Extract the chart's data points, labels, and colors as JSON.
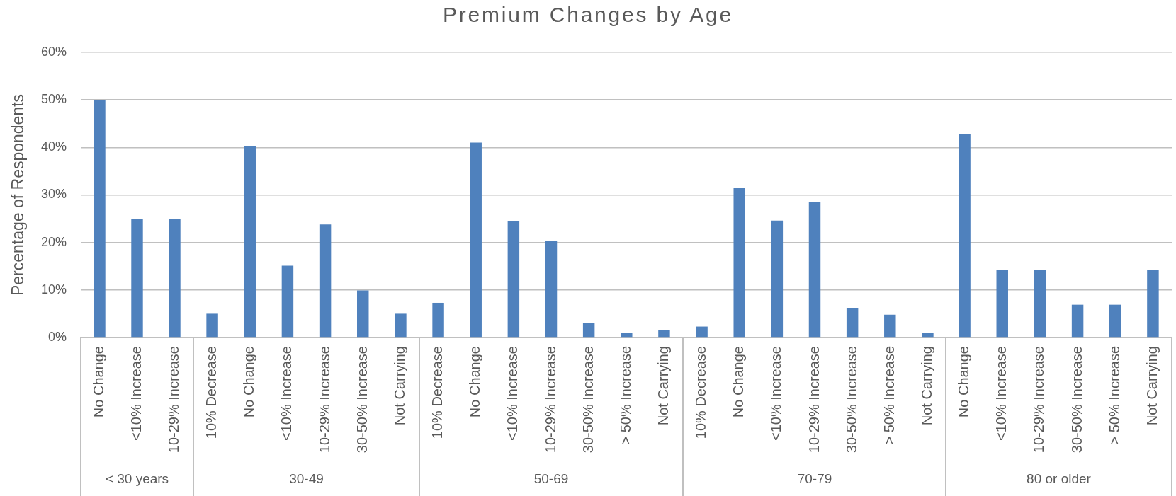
{
  "chart_data": [
    {
      "type": "bar",
      "ylabel": "Percentage of Respondents",
      "xlabel": "< 30 years",
      "categories": [
        "No Change",
        "<10% Increase",
        "10-29% Increase"
      ],
      "values": [
        50,
        25,
        25
      ],
      "color": "#4f81bd",
      "ylim": [
        0,
        60
      ],
      "yticks": [
        {
          "value": 0,
          "label": "0%"
        },
        {
          "value": 10,
          "label": "10%"
        },
        {
          "value": 20,
          "label": "20%"
        },
        {
          "value": 30,
          "label": "30%"
        },
        {
          "value": 40,
          "label": "40%"
        },
        {
          "value": 50,
          "label": "50%"
        },
        {
          "value": 60,
          "label": "60%"
        }
      ],
      "grid": "y"
    },
    {
      "type": "bar",
      "xlabel": "30-49",
      "categories": [
        "10% Decrease",
        "No Change",
        "<10% Increase",
        "10-29% Increase",
        "30-50% Increase",
        "Not Carrying"
      ],
      "values": [
        5,
        40.3,
        15.1,
        23.8,
        9.9,
        5
      ],
      "color": "#4f81bd",
      "ylim": [
        0,
        60
      ],
      "yticks": [
        {
          "value": 0,
          "label": null
        },
        {
          "value": 10,
          "label": null
        },
        {
          "value": 20,
          "label": null
        },
        {
          "value": 30,
          "label": null
        },
        {
          "value": 40,
          "label": null
        },
        {
          "value": 50,
          "label": null
        },
        {
          "value": 60,
          "label": null
        }
      ],
      "grid": "y",
      "tick_labels": "x"
    },
    {
      "type": "bar",
      "title": "Premium Changes by Age",
      "xlabel": "50-69",
      "categories": [
        "10% Decrease",
        "No Change",
        "<10% Increase",
        "10-29% Increase",
        "30-50% Increase",
        "> 50% Increase",
        "Not Carrying"
      ],
      "values": [
        7.3,
        41,
        24.4,
        20.4,
        3.1,
        1,
        1.5
      ],
      "color": "#4f81bd",
      "ylim": [
        0,
        60
      ],
      "yticks": [
        {
          "value": 0,
          "label": null
        },
        {
          "value": 10,
          "label": null
        },
        {
          "value": 20,
          "label": null
        },
        {
          "value": 30,
          "label": null
        },
        {
          "value": 40,
          "label": null
        },
        {
          "value": 50,
          "label": null
        },
        {
          "value": 60,
          "label": null
        }
      ],
      "grid": "y",
      "tick_labels": "x"
    },
    {
      "type": "bar",
      "xlabel": "70-79",
      "categories": [
        "10% Decrease",
        "No Change",
        "<10% Increase",
        "10-29% Increase",
        "30-50% Increase",
        "> 50% Increase",
        "Not Carrying"
      ],
      "values": [
        2.3,
        31.5,
        24.6,
        28.5,
        6.2,
        4.8,
        1
      ],
      "color": "#4f81bd",
      "ylim": [
        0,
        60
      ],
      "yticks": [
        {
          "value": 0,
          "label": null
        },
        {
          "value": 10,
          "label": null
        },
        {
          "value": 20,
          "label": null
        },
        {
          "value": 30,
          "label": null
        },
        {
          "value": 40,
          "label": null
        },
        {
          "value": 50,
          "label": null
        },
        {
          "value": 60,
          "label": null
        }
      ],
      "grid": "y",
      "tick_labels": "x"
    },
    {
      "type": "bar",
      "xlabel": "80 or older",
      "categories": [
        "No Change",
        "<10% Increase",
        "10-29% Increase",
        "30-50% Increase",
        "> 50% Increase",
        "Not Carrying"
      ],
      "values": [
        42.8,
        14.2,
        14.2,
        6.9,
        6.9,
        14.2
      ],
      "color": "#4f81bd",
      "ylim": [
        0,
        60
      ],
      "yticks": [
        {
          "value": 0,
          "label": null
        },
        {
          "value": 10,
          "label": null
        },
        {
          "value": 20,
          "label": null
        },
        {
          "value": 30,
          "label": null
        },
        {
          "value": 40,
          "label": null
        },
        {
          "value": 50,
          "label": null
        },
        {
          "value": 60,
          "label": null
        }
      ],
      "grid": "y",
      "tick_labels": "x"
    }
  ]
}
